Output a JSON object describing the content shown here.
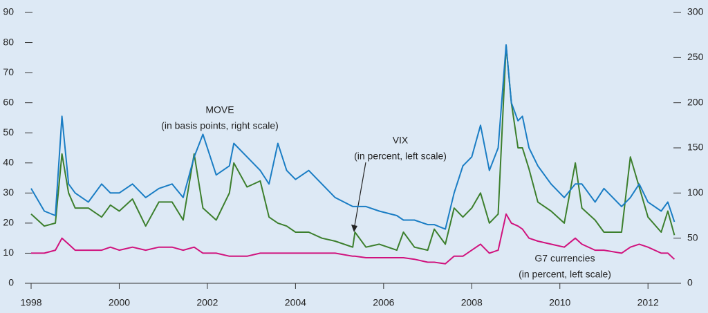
{
  "chart_data": {
    "type": "line",
    "x": [
      1998.0,
      1998.3,
      1998.55,
      1998.7,
      1998.85,
      1999.0,
      1999.3,
      1999.6,
      1999.8,
      2000.0,
      2000.3,
      2000.6,
      2000.9,
      2001.2,
      2001.45,
      2001.7,
      2001.9,
      2002.2,
      2002.5,
      2002.6,
      2002.9,
      2003.2,
      2003.4,
      2003.6,
      2003.8,
      2004.0,
      2004.3,
      2004.6,
      2004.9,
      2005.3,
      2005.35,
      2005.6,
      2005.9,
      2006.3,
      2006.45,
      2006.7,
      2007.0,
      2007.15,
      2007.4,
      2007.6,
      2007.8,
      2008.0,
      2008.2,
      2008.4,
      2008.6,
      2008.78,
      2008.9,
      2009.05,
      2009.15,
      2009.3,
      2009.5,
      2009.8,
      2010.1,
      2010.35,
      2010.5,
      2010.8,
      2011.0,
      2011.4,
      2011.6,
      2011.8,
      2012.0,
      2012.3,
      2012.45,
      2012.6
    ],
    "series": [
      {
        "name": "MOVE",
        "color": "#1a7dc4",
        "axis": "y2",
        "values": [
          105,
          80,
          75,
          185,
          110,
          100,
          90,
          110,
          100,
          100,
          110,
          95,
          105,
          110,
          95,
          140,
          165,
          120,
          130,
          155,
          140,
          125,
          110,
          155,
          125,
          115,
          125,
          110,
          95,
          85,
          85,
          85,
          80,
          75,
          70,
          70,
          65,
          65,
          60,
          100,
          130,
          140,
          175,
          125,
          150,
          264,
          200,
          180,
          185,
          150,
          130,
          110,
          95,
          110,
          110,
          90,
          105,
          85,
          95,
          110,
          90,
          80,
          90,
          68
        ]
      },
      {
        "name": "VIX",
        "color": "#3c7f2d",
        "values": [
          23,
          19,
          20,
          43,
          30,
          25,
          25,
          22,
          26,
          24,
          28,
          19,
          27,
          27,
          21,
          43,
          25,
          21,
          30,
          40,
          32,
          34,
          22,
          20,
          19,
          17,
          17,
          15,
          14,
          12,
          17,
          12,
          13,
          11,
          17,
          12,
          11,
          18,
          13,
          25,
          22,
          25,
          30,
          20,
          23,
          79,
          60,
          45,
          45,
          38,
          27,
          24,
          20,
          40,
          25,
          21,
          17,
          17,
          42,
          32,
          22,
          17,
          24,
          16
        ]
      },
      {
        "name": "G7 currencies",
        "color": "#d0127d",
        "values": [
          10,
          10,
          11,
          15,
          13,
          11,
          11,
          11,
          12,
          11,
          12,
          11,
          12,
          12,
          11,
          12,
          10,
          10,
          9,
          9,
          9,
          10,
          10,
          10,
          10,
          10,
          10,
          10,
          10,
          9,
          9,
          8.5,
          8.5,
          8.5,
          8.5,
          8,
          7,
          7,
          6.5,
          9,
          9,
          11,
          13,
          10,
          11,
          23,
          20,
          19,
          18,
          15,
          14,
          13,
          12,
          15,
          13,
          11,
          11,
          10,
          12,
          13,
          12,
          10,
          10,
          8
        ]
      }
    ],
    "annotations": [
      {
        "lines": [
          "MOVE",
          "(in basis points, right scale)"
        ]
      },
      {
        "lines": [
          "VIX",
          "(in percent, left scale)"
        ]
      },
      {
        "lines": [
          "G7 currencies",
          "(in percent, left scale)"
        ]
      }
    ],
    "xlim": [
      1998,
      2012.75
    ],
    "xticks": [
      1998,
      2000,
      2002,
      2004,
      2006,
      2008,
      2010,
      2012
    ],
    "ylim": [
      0,
      90
    ],
    "yticks": [
      0,
      10,
      20,
      30,
      40,
      50,
      60,
      70,
      80,
      90
    ],
    "y2lim": [
      0,
      300
    ],
    "y2ticks": [
      0,
      50,
      100,
      150,
      200,
      250,
      300
    ]
  }
}
